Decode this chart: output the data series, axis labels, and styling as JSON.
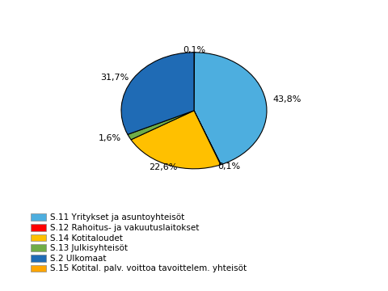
{
  "sizes": [
    0.1,
    43.8,
    0.1,
    22.6,
    1.6,
    31.7
  ],
  "colors_pie": [
    "#FF0000",
    "#4DAEDF",
    "#FFA500",
    "#FFC000",
    "#70AD47",
    "#1F6BB5"
  ],
  "label_texts": [
    "0,1%",
    "43,8%",
    "0,1%",
    "22,6%",
    "1,6%",
    "31,7%"
  ],
  "legend_colors": [
    "#4DAEDF",
    "#FF0000",
    "#FFC000",
    "#70AD47",
    "#1F6BB5",
    "#FFA500"
  ],
  "legend_labels": [
    "S.11 Yritykset ja asuntoyhteisöt",
    "S.12 Rahoitus- ja vakuutuslaitokset",
    "S.14 Kotitaloudet",
    "S.13 Julkisyhteisöt",
    "S.2 Ulkomaat",
    "S.15 Kotital. palv. voittoa tavoittelem. yhteisöt"
  ],
  "background_color": "#FFFFFF",
  "fontsize_labels": 8,
  "fontsize_legend": 7.5
}
